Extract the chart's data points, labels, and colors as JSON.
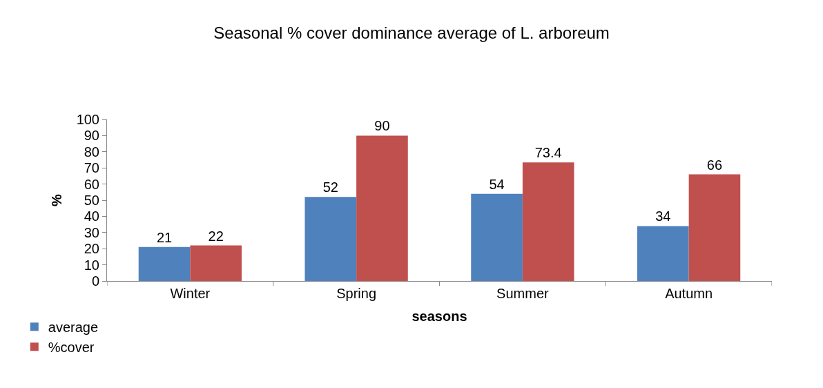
{
  "chart_data": {
    "type": "bar",
    "title": "Seasonal % cover dominance average of L. arboreum",
    "xlabel": "seasons",
    "ylabel": "%",
    "categories": [
      "Winter",
      "Spring",
      "Summer",
      "Autumn"
    ],
    "series": [
      {
        "name": "average",
        "color": "#4f81bd",
        "values": [
          21,
          52,
          54,
          34
        ]
      },
      {
        "name": "%cover",
        "color": "#c0504d",
        "values": [
          22,
          90,
          73.4,
          66
        ]
      }
    ],
    "ylim": [
      0,
      100
    ],
    "yticks": [
      0,
      10,
      20,
      30,
      40,
      50,
      60,
      70,
      80,
      90,
      100
    ],
    "legend": "bottom left",
    "data_labels": true
  }
}
